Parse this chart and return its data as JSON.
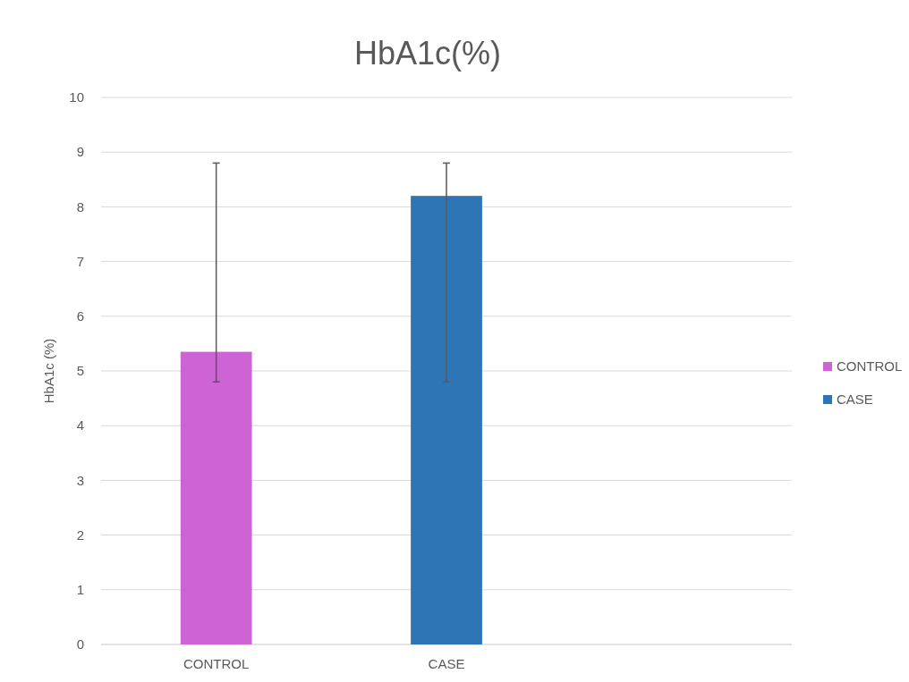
{
  "chart_data": {
    "type": "bar",
    "title": "HbA1c(%)",
    "ylabel": "HbA1c (%)",
    "categories": [
      "CONTROL",
      "CASE",
      null
    ],
    "series": [
      {
        "name": "CONTROL",
        "color": "#cd63d4",
        "values": [
          5.35,
          null,
          null
        ],
        "errors": [
          [
            4.8,
            8.8
          ],
          null,
          null
        ]
      },
      {
        "name": "CASE",
        "color": "#2e75b6",
        "values": [
          null,
          8.2,
          null
        ],
        "errors": [
          null,
          [
            4.8,
            8.8
          ],
          null
        ]
      }
    ],
    "ylim": [
      0,
      10
    ],
    "yticks": [
      0,
      1,
      2,
      3,
      4,
      5,
      6,
      7,
      8,
      9,
      10
    ],
    "grid": true,
    "legend": "right"
  }
}
